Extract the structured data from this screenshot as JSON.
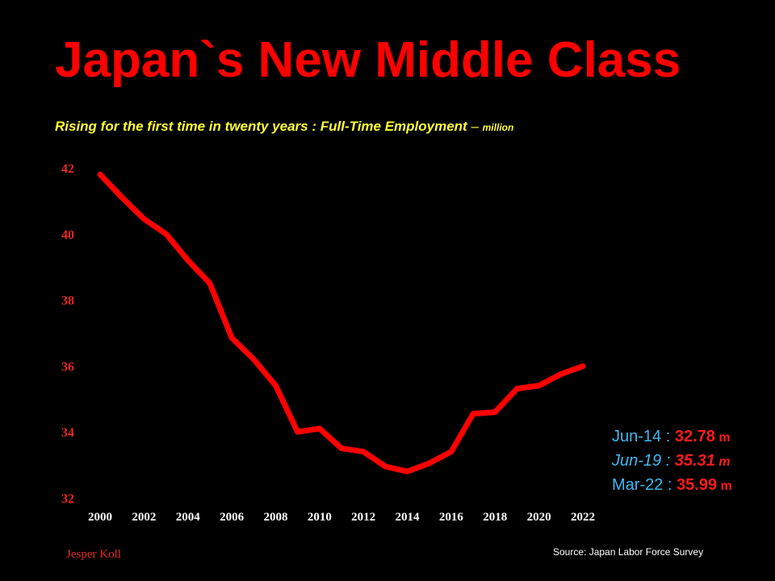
{
  "title": "Japan`s New Middle Class",
  "subtitle": {
    "lead": "Rising for the first time in twenty years : ",
    "measure": "Full-Time Employment",
    "dash": " – ",
    "unit": "million"
  },
  "chart_data": {
    "type": "line",
    "title": "Japan`s New Middle Class",
    "xlabel": "",
    "ylabel": "",
    "xlim": [
      2000,
      2022
    ],
    "ylim": [
      32,
      42
    ],
    "yticks": [
      "42",
      "40",
      "38",
      "36",
      "34",
      "32"
    ],
    "xticks": [
      "2000",
      "2002",
      "2004",
      "2006",
      "2008",
      "2010",
      "2012",
      "2014",
      "2016",
      "2018",
      "2020",
      "2022"
    ],
    "grid": false,
    "legend": "none",
    "line_color": "#ff0000",
    "series": [
      {
        "x": [
          2000,
          2001,
          2002,
          2003,
          2004,
          2005,
          2006,
          2007,
          2008,
          2009,
          2010,
          2011,
          2012,
          2013,
          2014,
          2015,
          2016,
          2017,
          2018,
          2019,
          2020,
          2021,
          2022
        ],
        "values": [
          41.8,
          41.1,
          40.45,
          40.0,
          39.2,
          38.5,
          36.85,
          36.2,
          35.4,
          34.0,
          34.1,
          33.5,
          33.4,
          32.95,
          32.8,
          33.05,
          33.4,
          34.55,
          34.6,
          35.31,
          35.4,
          35.75,
          35.99
        ]
      }
    ]
  },
  "annotations": [
    {
      "label": "Jun-14 : ",
      "value": "32.78",
      "unit": " m"
    },
    {
      "label": "Jun-19 : ",
      "value": "35.31",
      "unit": " m"
    },
    {
      "label": "Mar-22 : ",
      "value": "35.99",
      "unit": " m"
    }
  ],
  "source": "Source: Japan Labor Force Survey",
  "author": "Jesper Koll",
  "colors": {
    "background": "#000000",
    "title": "#ff0000",
    "subtitle": "#ffff33",
    "annotation_label": "#3db8f0",
    "annotation_value": "#ff1a1a"
  }
}
